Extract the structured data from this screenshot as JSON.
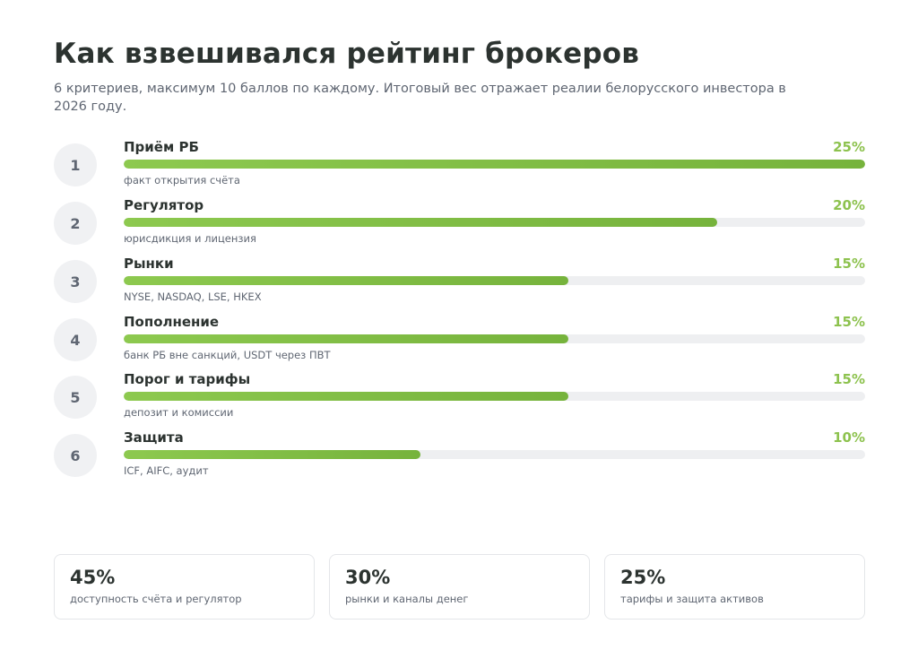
{
  "title": "Как взвешивался рейтинг брокеров",
  "subtitle": "6 критериев, максимум 10 баллов по каждому. Итоговый вес отражает реалии белорусского инвестора в 2026 году.",
  "accent_color": "#8dc24e",
  "chart_data": {
    "type": "bar",
    "orientation": "horizontal",
    "categories": [
      "Приём РБ",
      "Регулятор",
      "Рынки",
      "Пополнение",
      "Порог и тарифы",
      "Защита"
    ],
    "values": [
      25,
      20,
      15,
      15,
      15,
      10
    ],
    "value_unit": "%",
    "xlim": [
      0,
      25
    ]
  },
  "criteria": [
    {
      "num": "1",
      "name": "Приём РБ",
      "pct": "25%",
      "note": "факт открытия счёта"
    },
    {
      "num": "2",
      "name": "Регулятор",
      "pct": "20%",
      "note": "юрисдикция и лицензия"
    },
    {
      "num": "3",
      "name": "Рынки",
      "pct": "15%",
      "note": "NYSE, NASDAQ, LSE, HKEX"
    },
    {
      "num": "4",
      "name": "Пополнение",
      "pct": "15%",
      "note": "банк РБ вне санкций, USDT через ПВТ"
    },
    {
      "num": "5",
      "name": "Порог и тарифы",
      "pct": "15%",
      "note": "депозит и комиссии"
    },
    {
      "num": "6",
      "name": "Защита",
      "pct": "10%",
      "note": "ICF, AIFC, аудит"
    }
  ],
  "summary": [
    {
      "value": "45%",
      "label": "доступность счёта и регулятор"
    },
    {
      "value": "30%",
      "label": "рынки и каналы денег"
    },
    {
      "value": "25%",
      "label": "тарифы и защита активов"
    }
  ]
}
